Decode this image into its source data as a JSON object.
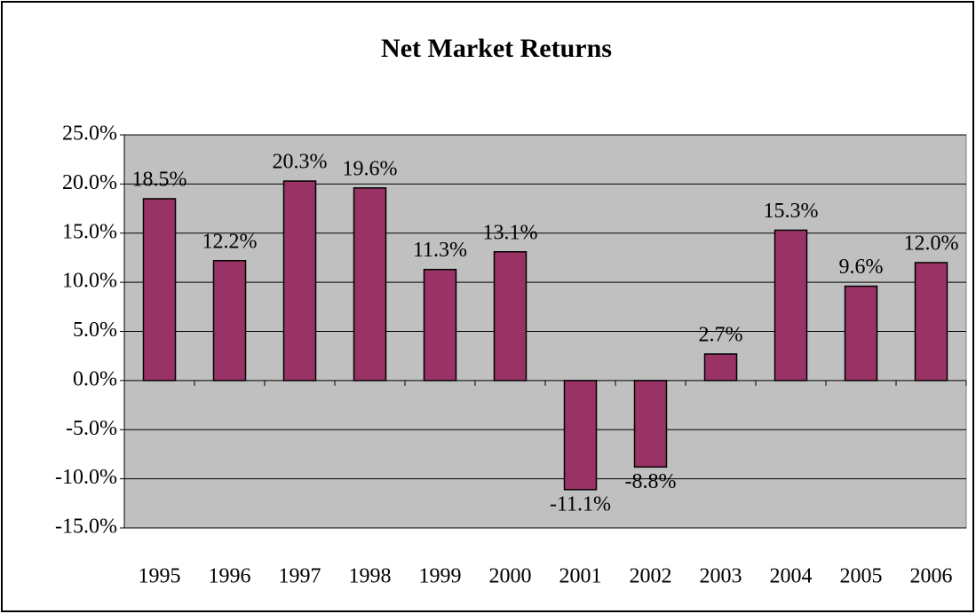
{
  "chart_data": {
    "type": "bar",
    "title": "Net Market Returns",
    "categories": [
      "1995",
      "1996",
      "1997",
      "1998",
      "1999",
      "2000",
      "2001",
      "2002",
      "2003",
      "2004",
      "2005",
      "2006"
    ],
    "values": [
      18.5,
      12.2,
      20.3,
      19.6,
      11.3,
      13.1,
      -11.1,
      -8.8,
      2.7,
      15.3,
      9.6,
      12.0
    ],
    "value_labels": [
      "18.5%",
      "12.2%",
      "20.3%",
      "19.6%",
      "11.3%",
      "13.1%",
      "-11.1%",
      "-8.8%",
      "2.7%",
      "15.3%",
      "9.6%",
      "12.0%"
    ],
    "color": "#993366",
    "ylim": [
      -15,
      25
    ],
    "yticks": [
      {
        "value": -15,
        "label": "-15.0%"
      },
      {
        "value": -10,
        "label": "-10.0%"
      },
      {
        "value": -5,
        "label": "-5.0%"
      },
      {
        "value": 0,
        "label": "0.0%"
      },
      {
        "value": 5,
        "label": "5.0%"
      },
      {
        "value": 10,
        "label": "10.0%"
      },
      {
        "value": 15,
        "label": "15.0%"
      },
      {
        "value": 20,
        "label": "20.0%"
      },
      {
        "value": 25,
        "label": "25.0%"
      }
    ],
    "grid": true
  }
}
